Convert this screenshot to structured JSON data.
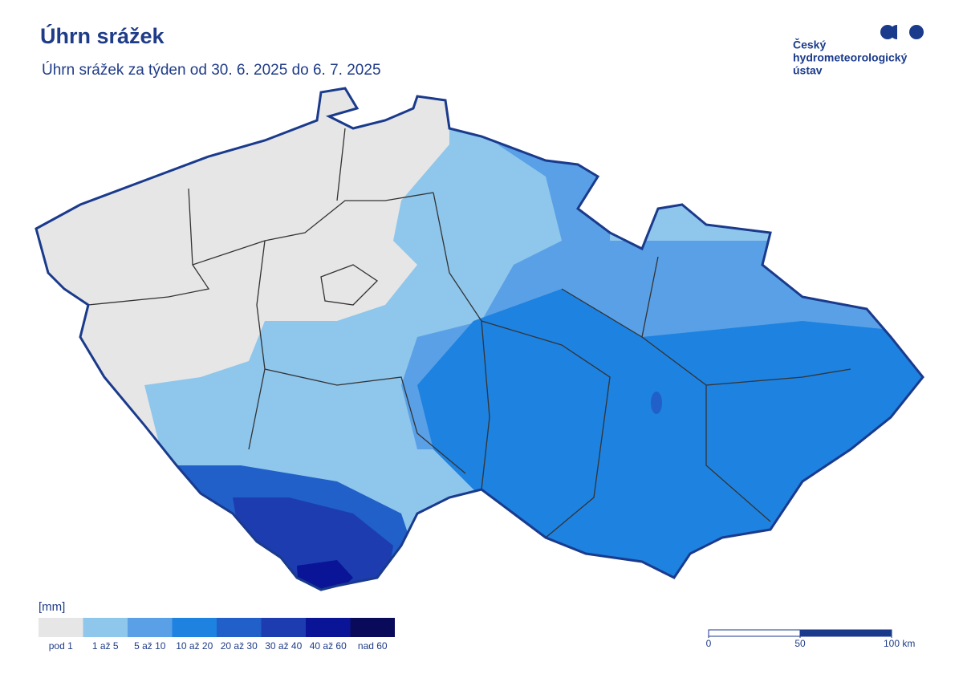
{
  "header": {
    "title": "Úhrn srážek",
    "subtitle": "Úhrn srážek za týden od 30. 6. 2025 do 6. 7. 2025"
  },
  "logo": {
    "lines": [
      "Český",
      "hydrometeorologický",
      "ústav"
    ]
  },
  "legend": {
    "unit": "[mm]",
    "classes": [
      {
        "label": "pod 1",
        "color": "#e6e6e6"
      },
      {
        "label": "1 až 5",
        "color": "#8ec6ec"
      },
      {
        "label": "5 až 10",
        "color": "#5aa0e6"
      },
      {
        "label": "10 až 20",
        "color": "#1e82e0"
      },
      {
        "label": "20 až 30",
        "color": "#2060c8"
      },
      {
        "label": "30 až 40",
        "color": "#1c3cb0"
      },
      {
        "label": "40 až 60",
        "color": "#0a1496"
      },
      {
        "label": "nad 60",
        "color": "#0a0a5a"
      }
    ]
  },
  "scale": {
    "ticks": [
      0,
      50,
      {
        "value": 100,
        "label": "100 km"
      }
    ]
  }
}
